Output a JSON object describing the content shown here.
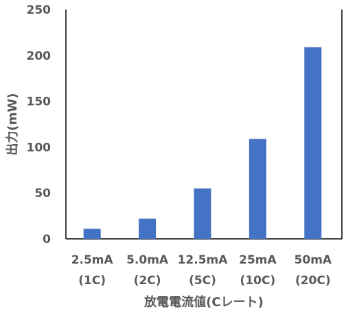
{
  "chart_data": {
    "type": "bar",
    "categories": [
      [
        "2.5mA",
        "(1C)"
      ],
      [
        "5.0mA",
        "(2C)"
      ],
      [
        "12.5mA",
        "(5C)"
      ],
      [
        "25mA",
        "(10C)"
      ],
      [
        "50mA",
        "(20C)"
      ]
    ],
    "values": [
      11,
      22,
      55,
      109,
      209
    ],
    "xlabel": "放電電流値(Cレート)",
    "ylabel": "出力(mW)",
    "ylim": [
      0,
      250
    ],
    "yticks": [
      0,
      50,
      100,
      150,
      200,
      250
    ],
    "grid": false,
    "bar_color": "#4472c4",
    "axis_color": "#000000",
    "text_color": "#595959"
  }
}
